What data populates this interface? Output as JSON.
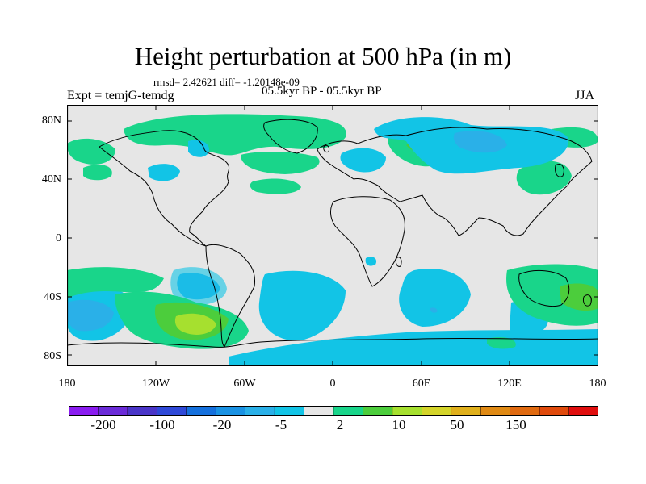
{
  "title": "Height perturbation at 500 hPa (in m)",
  "stats": "rmsd= 2.42621 diff= -1.20148e-09",
  "experiment": "Expt = temjG-temdg",
  "period": "05.5kyr BP - 05.5kyr BP",
  "season": "JJA",
  "y_axis": {
    "labels": [
      "80N",
      "40N",
      "0",
      "40S",
      "80S"
    ],
    "values": [
      80,
      40,
      0,
      -40,
      -80
    ]
  },
  "x_axis": {
    "labels": [
      "180",
      "120W",
      "60W",
      "0",
      "60E",
      "120E",
      "180"
    ],
    "values": [
      -180,
      -120,
      -60,
      0,
      60,
      120,
      180
    ]
  },
  "colorbar": {
    "labels": [
      "-200",
      "-100",
      "-20",
      "-5",
      "2",
      "10",
      "50",
      "150"
    ],
    "colors": [
      "#8a1cf0",
      "#6b2bd8",
      "#4a35c8",
      "#2f49d8",
      "#1570dd",
      "#1a92e3",
      "#2ab0e8",
      "#12c4e6",
      "#e6e6e6",
      "#19d58a",
      "#4ccd3c",
      "#a6e02f",
      "#d4d42a",
      "#e0b01c",
      "#e08a14",
      "#e06a10",
      "#e04a0c",
      "#e00e0e"
    ]
  },
  "colors": {
    "background": "#e6e6e6",
    "neg_small": "#12c4e6",
    "neg_mid": "#2ab0e8",
    "neg_large": "#1a92e3",
    "pos_small": "#19d58a",
    "pos_mid": "#4ccd3c",
    "pos_large": "#a6e02f"
  }
}
